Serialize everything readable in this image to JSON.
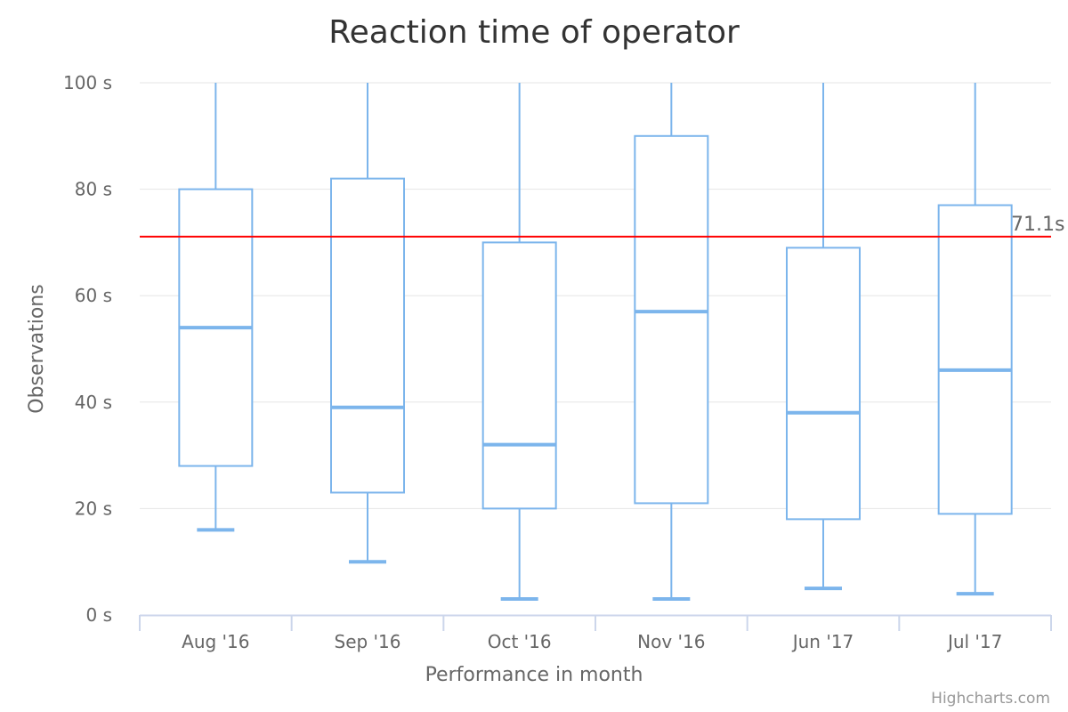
{
  "chart_data": {
    "type": "boxplot",
    "title": "Reaction time of operator",
    "xlabel": "Performance in month",
    "ylabel": "Observations",
    "categories": [
      "Aug '16",
      "Sep '16",
      "Oct '16",
      "Nov '16",
      "Jun '17",
      "Jul '17"
    ],
    "y_ticks": [
      "0 s",
      "20 s",
      "40 s",
      "60 s",
      "80 s",
      "100 s"
    ],
    "y_tick_values": [
      0,
      20,
      40,
      60,
      80,
      100
    ],
    "ylim": [
      0,
      100
    ],
    "grid": true,
    "series": [
      {
        "boxes": [
          {
            "low": 16,
            "q1": 28,
            "median": 54,
            "q3": 80,
            "high": 100
          },
          {
            "low": 10,
            "q1": 23,
            "median": 39,
            "q3": 82,
            "high": 100
          },
          {
            "low": 3,
            "q1": 20,
            "median": 32,
            "q3": 70,
            "high": 100
          },
          {
            "low": 3,
            "q1": 21,
            "median": 57,
            "q3": 90,
            "high": 100
          },
          {
            "low": 5,
            "q1": 18,
            "median": 38,
            "q3": 69,
            "high": 100
          },
          {
            "low": 4,
            "q1": 19,
            "median": 46,
            "q3": 77,
            "high": 100
          }
        ]
      }
    ],
    "plot_line": {
      "value": 71.1,
      "label": "71.1s"
    },
    "credits": "Highcharts.com",
    "colors": {
      "box": "#7cb5ec",
      "plot_line": "#ff0000",
      "grid": "#e6e6e6",
      "axis_line": "#ccd6eb"
    }
  }
}
